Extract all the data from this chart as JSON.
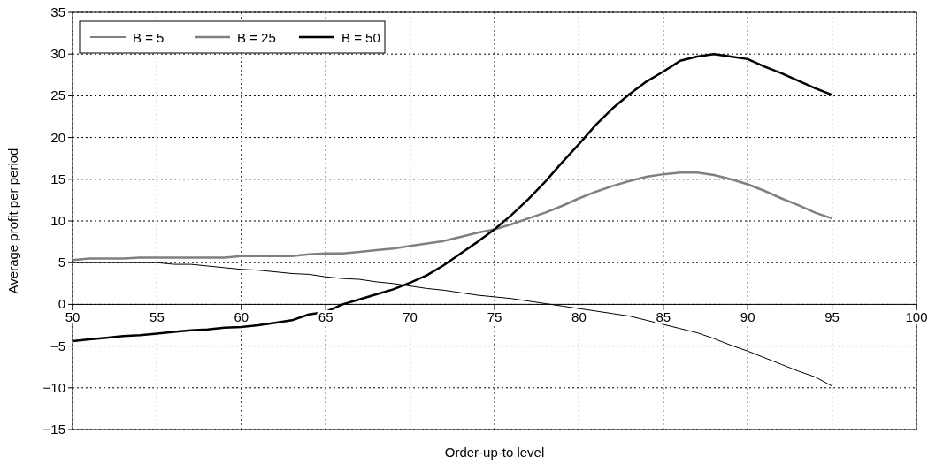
{
  "chart_data": {
    "type": "line",
    "xlabel": "Order-up-to level",
    "ylabel": "Average profit per period",
    "x": [
      50,
      51,
      52,
      53,
      54,
      55,
      56,
      57,
      58,
      59,
      60,
      61,
      62,
      63,
      64,
      65,
      66,
      67,
      68,
      69,
      70,
      71,
      72,
      73,
      74,
      75,
      76,
      77,
      78,
      79,
      80,
      81,
      82,
      83,
      84,
      85,
      86,
      87,
      88,
      89,
      90,
      91,
      92,
      93,
      94,
      95
    ],
    "series": [
      {
        "name": "B = 5",
        "color": "#000000",
        "values": [
          5,
          5,
          5,
          5,
          5,
          5,
          4.8,
          4.8,
          4.6,
          4.4,
          4.2,
          4.1,
          3.9,
          3.7,
          3.6,
          3.3,
          3.1,
          3.0,
          2.7,
          2.5,
          2.2,
          1.9,
          1.7,
          1.4,
          1.1,
          0.9,
          0.7,
          0.4,
          0.1,
          -0.2,
          -0.5,
          -0.8,
          -1.1,
          -1.4,
          -1.9,
          -2.4,
          -2.9,
          -3.4,
          -4.1,
          -4.9,
          -5.6,
          -6.4,
          -7.2,
          -8.0,
          -8.7,
          -9.8
        ]
      },
      {
        "name": "B = 25",
        "color": "#808080",
        "values": [
          5.3,
          5.5,
          5.5,
          5.5,
          5.6,
          5.6,
          5.6,
          5.6,
          5.6,
          5.6,
          5.8,
          5.8,
          5.8,
          5.8,
          6.0,
          6.1,
          6.1,
          6.3,
          6.5,
          6.7,
          7.0,
          7.3,
          7.6,
          8.1,
          8.6,
          9.0,
          9.6,
          10.3,
          11.0,
          11.8,
          12.7,
          13.5,
          14.2,
          14.8,
          15.3,
          15.6,
          15.8,
          15.8,
          15.5,
          15.0,
          14.4,
          13.6,
          12.7,
          11.9,
          11.0,
          10.3
        ]
      },
      {
        "name": "B = 50",
        "color": "#000000",
        "values": [
          -4.4,
          -4.2,
          -4.0,
          -3.8,
          -3.7,
          -3.5,
          -3.3,
          -3.1,
          -3.0,
          -2.8,
          -2.7,
          -2.5,
          -2.2,
          -1.9,
          -1.2,
          -0.9,
          0,
          0.6,
          1.2,
          1.8,
          2.6,
          3.5,
          4.7,
          6.1,
          7.5,
          9.0,
          10.7,
          12.6,
          14.7,
          17.0,
          19.2,
          21.5,
          23.5,
          25.2,
          26.7,
          27.9,
          29.2,
          29.7,
          30.0,
          29.7,
          29.4,
          28.5,
          27.7,
          26.8,
          25.9,
          25.1
        ]
      }
    ],
    "xlim": [
      50,
      100
    ],
    "xticks": [
      50,
      55,
      60,
      65,
      70,
      75,
      80,
      85,
      90,
      95,
      100
    ],
    "ylim": [
      -15,
      35
    ],
    "yticks": [
      {
        "value": -15,
        "label": "−15"
      },
      {
        "value": -10,
        "label": "−10"
      },
      {
        "value": -5,
        "label": "−5"
      },
      0,
      5,
      10,
      15,
      20,
      25,
      30,
      35
    ],
    "grid": true,
    "legend": "top left",
    "line_style": "solid"
  }
}
